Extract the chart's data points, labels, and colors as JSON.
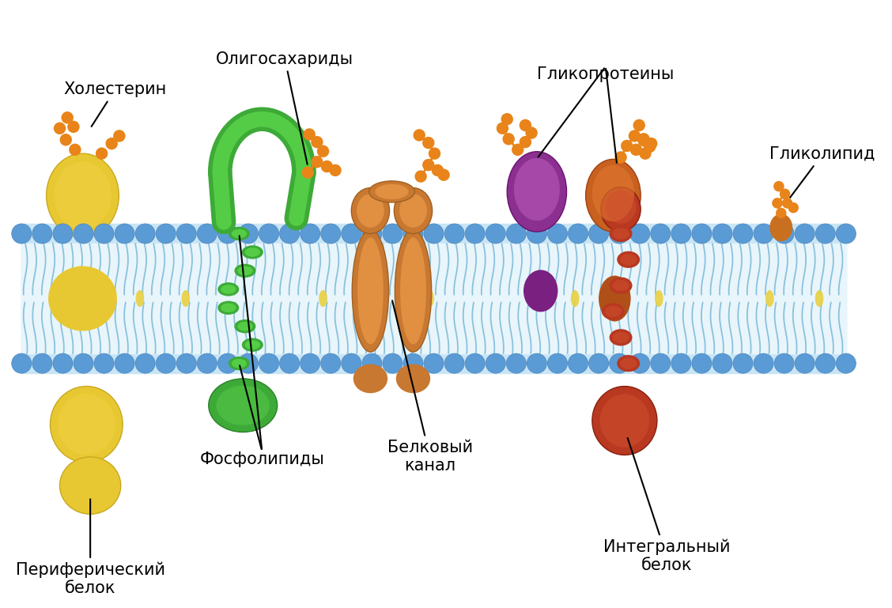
{
  "background_color": "#ffffff",
  "head_color": "#5b9bd5",
  "head_color_dark": "#4a85bb",
  "tail_color": "#7ab8d8",
  "inner_membrane_color": "#e8f5fb",
  "membrane_bg_color": "#c8e5f5",
  "yellow_color": "#e8c832",
  "yellow_dark": "#c8a820",
  "green_color": "#3daa38",
  "green_dark": "#2a8028",
  "green_light": "#55cc45",
  "channel_color": "#c87830",
  "channel_dark": "#a06020",
  "channel_light": "#e09040",
  "purple_color": "#8b3090",
  "purple_dark": "#6b1070",
  "purple_mid": "#c060c0",
  "orange_prot_color": "#c86020",
  "orange_prot_dark": "#a04010",
  "orange_prot_light": "#e07830",
  "red_prot_color": "#b83820",
  "red_prot_dark": "#882010",
  "red_prot_light": "#d05030",
  "glycolipid_color": "#c87020",
  "bead_color": "#e8841a",
  "bead_dark": "#c86010",
  "yellow_lipid": "#e8d040",
  "labels": {
    "cholesterol": "Холестерин",
    "oligosaccharides": "Олигосахариды",
    "glycoproteins": "Гликопротеины",
    "glycolipid": "Гликолипид",
    "phospholipids": "Фосфолипиды",
    "protein_channel": "Белковый\nканал",
    "peripheral_protein": "Периферический\nбелок",
    "integral_protein": "Интегральный\nбелок"
  },
  "fontsize": 15
}
